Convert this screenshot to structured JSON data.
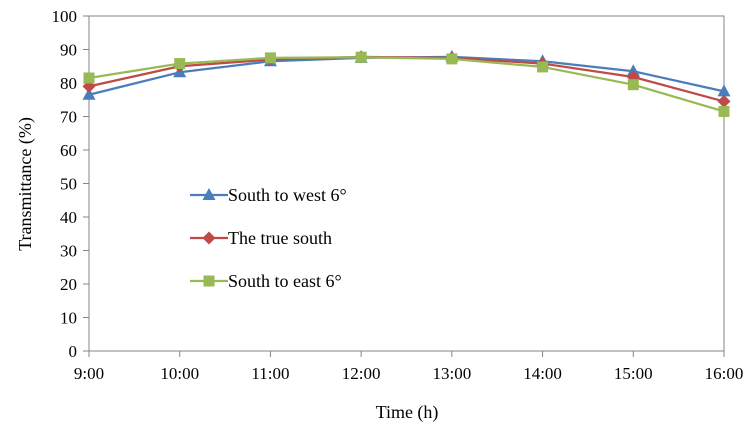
{
  "chart_data": {
    "type": "line",
    "title": "",
    "xlabel": "Time (h)",
    "ylabel": "Transmittance  (%)",
    "categories": [
      "9:00",
      "10:00",
      "11:00",
      "12:00",
      "13:00",
      "14:00",
      "15:00",
      "16:00"
    ],
    "ylim": [
      0,
      100
    ],
    "yticks": [
      "0",
      "10",
      "20",
      "30",
      "40",
      "50",
      "60",
      "70",
      "80",
      "90",
      "100"
    ],
    "grid": false,
    "legend_position": "center-left",
    "series": [
      {
        "name": "South to west 6°",
        "color": "#4A7EBB",
        "marker": "triangle",
        "values": [
          76.5,
          83.2,
          86.5,
          87.5,
          87.8,
          86.5,
          83.5,
          77.5
        ]
      },
      {
        "name": "The true south",
        "color": "#BE4B48",
        "marker": "diamond",
        "values": [
          79.0,
          85.0,
          87.0,
          87.8,
          87.5,
          85.8,
          81.8,
          74.5
        ]
      },
      {
        "name": "South to east 6°",
        "color": "#98B954",
        "marker": "square",
        "values": [
          81.5,
          85.8,
          87.5,
          87.7,
          87.2,
          84.8,
          79.5,
          71.5
        ]
      }
    ]
  }
}
